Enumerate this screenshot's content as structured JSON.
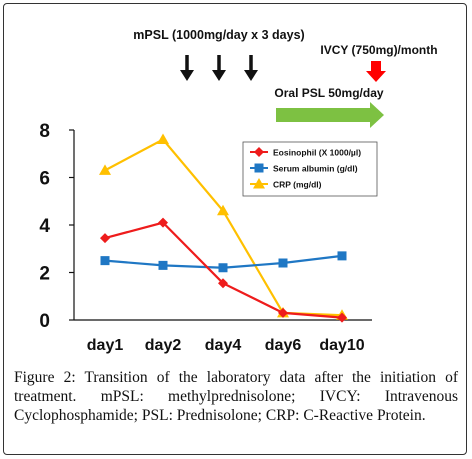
{
  "chart_data": {
    "type": "line",
    "categories": [
      "day1",
      "day2",
      "day4",
      "day6",
      "day10"
    ],
    "ylim": [
      0,
      8
    ],
    "yticks": [
      "0",
      "2",
      "4",
      "6",
      "8"
    ],
    "grid": false,
    "legend_position": "upper-right",
    "series": [
      {
        "name": "Eosinophil (X 1000/µl)",
        "values": [
          3.45,
          4.1,
          1.55,
          0.3,
          0.1
        ],
        "color": "#ee1c1c",
        "marker": "diamond"
      },
      {
        "name": "Serum albumin (g/dl)",
        "values": [
          2.5,
          2.3,
          2.2,
          2.4,
          2.7
        ],
        "color": "#1f77c4",
        "marker": "square"
      },
      {
        "name": "CRP (mg/dl)",
        "values": [
          6.3,
          7.6,
          4.6,
          0.3,
          0.2
        ],
        "color": "#ffc000",
        "marker": "triangle"
      }
    ],
    "annotations": {
      "mpsl": "mPSL (1000mg/day x 3 days)",
      "ivcy": "IVCY (750mg)/month",
      "oral_psl": "Oral PSL 50mg/day"
    },
    "colors": {
      "arrow_black": "#111111",
      "arrow_red": "#ff0000",
      "arrow_green": "#7dc142"
    }
  },
  "caption": {
    "label": "Figure 2:",
    "text": "Transition of the laboratory data after the initiation of treatment. mPSL: methylprednisolone; IVCY: Intravenous Cyclophosphamide; PSL: Prednisolone; CRP: C-Reactive Protein."
  }
}
